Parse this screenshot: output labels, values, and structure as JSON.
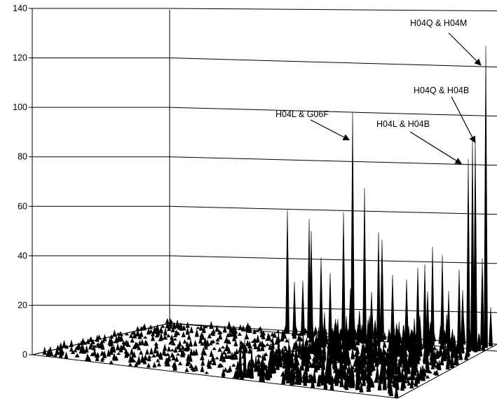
{
  "chart_data": {
    "type": "bar3d",
    "title": "",
    "xlabel": "",
    "ylabel": "",
    "zlim": [
      0,
      140
    ],
    "z_ticks": [
      "0",
      "20",
      "40",
      "60",
      "80",
      "100",
      "120",
      "140"
    ],
    "grid": true,
    "legend": "none",
    "annotations": [
      {
        "label": "H04Q & H04M",
        "value": 122
      },
      {
        "label": "H04Q & H04B",
        "value": 85
      },
      {
        "label": "H04L & H04B",
        "value": 78
      },
      {
        "label": "H04L & G06F",
        "value": 92
      }
    ],
    "notable_peaks": [
      122,
      92,
      85,
      85,
      78,
      62,
      52,
      50,
      48,
      45,
      43,
      40,
      38,
      36,
      35,
      34,
      32,
      31,
      30,
      28,
      27,
      26,
      25,
      24,
      23,
      22,
      21,
      20,
      19,
      18
    ]
  }
}
